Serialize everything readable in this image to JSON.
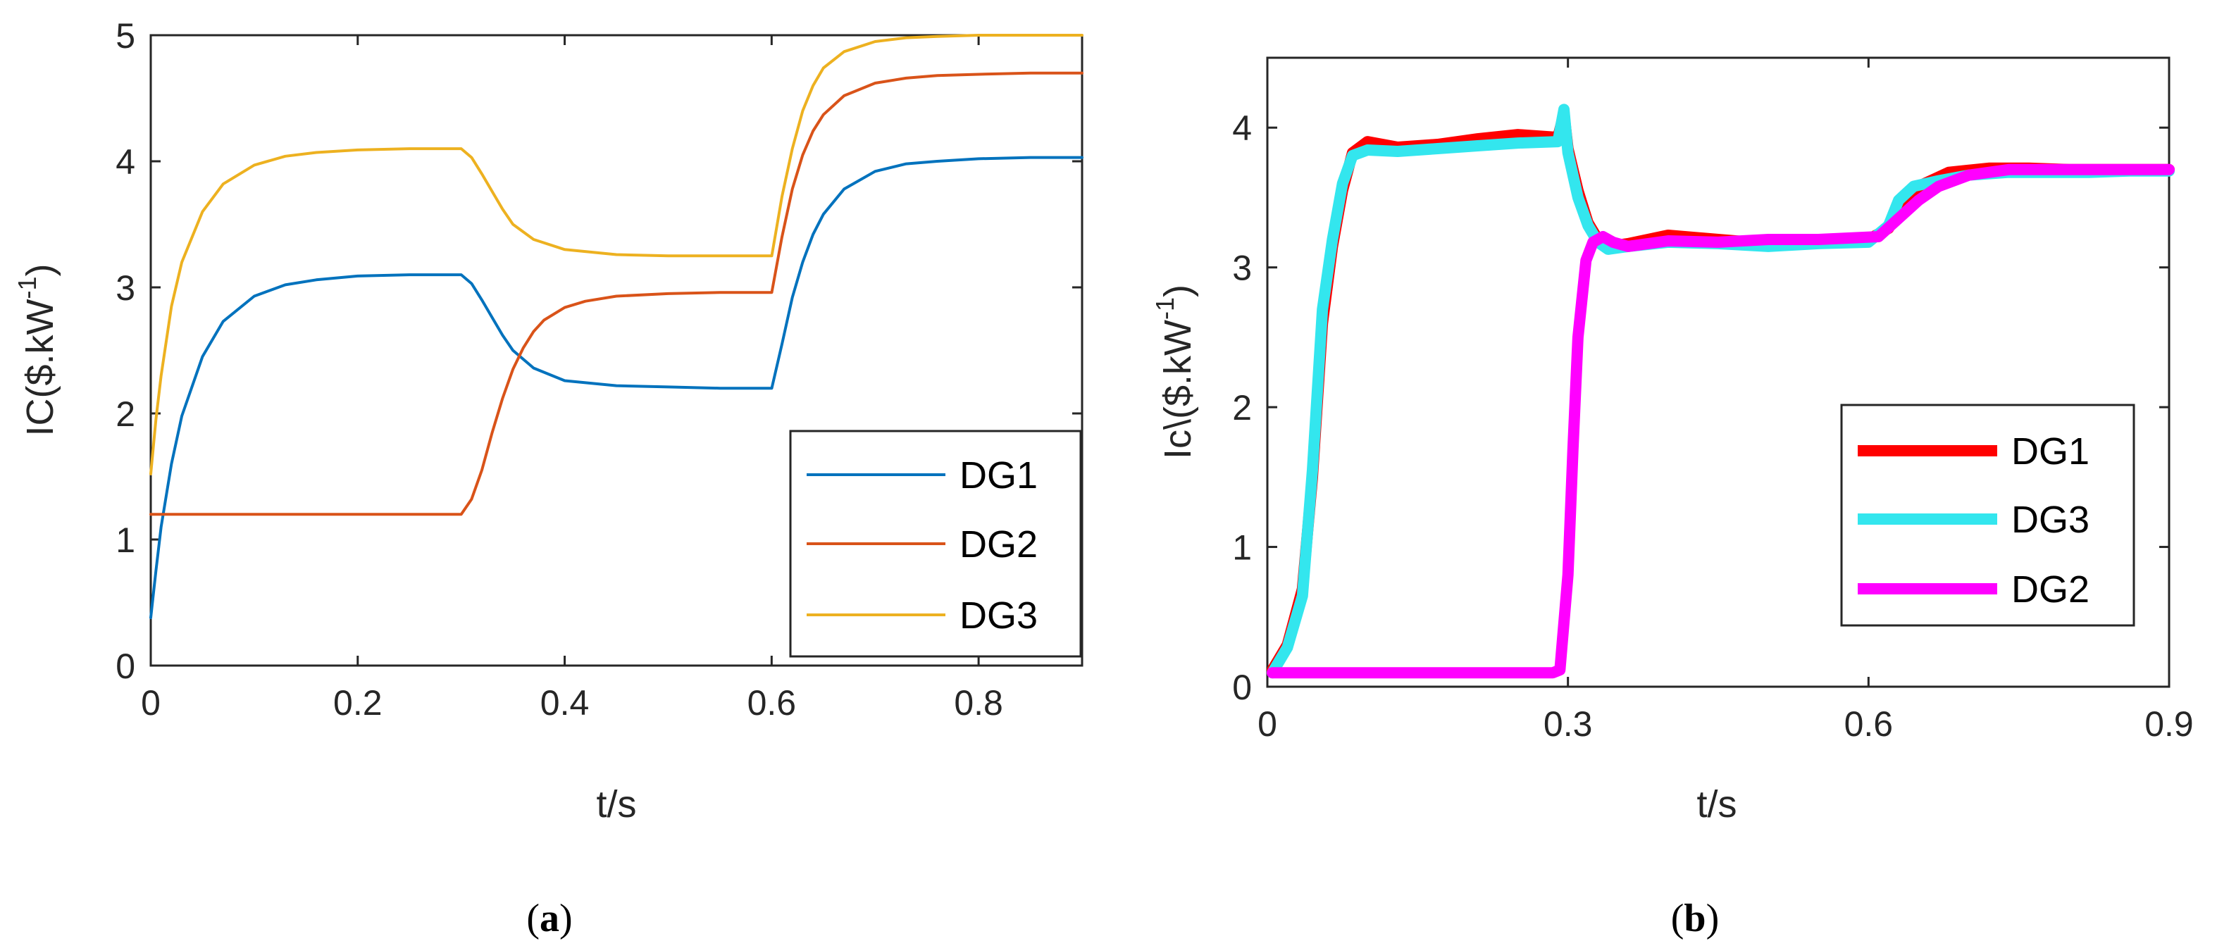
{
  "chart_data": [
    {
      "id": "a",
      "type": "line",
      "caption_letter": "a",
      "xlabel": "t/s",
      "ylabel": "IC($.kW",
      "ylabel_exp": "-1",
      "ylabel_close": ")",
      "xlim": [
        0,
        0.9
      ],
      "ylim": [
        0,
        5
      ],
      "xticks": [
        0,
        0.2,
        0.4,
        0.6,
        0.8
      ],
      "xtick_labels": [
        "0",
        "0.2",
        "0.4",
        "0.6",
        "0.8"
      ],
      "yticks": [
        0,
        1,
        2,
        3,
        4,
        5
      ],
      "ytick_labels": [
        "0",
        "1",
        "2",
        "3",
        "4",
        "5"
      ],
      "grid": false,
      "legend_position": "bottom-right",
      "series": [
        {
          "name": "DG1",
          "color": "#0072bd",
          "width": "thin",
          "x": [
            0,
            0.005,
            0.01,
            0.02,
            0.03,
            0.05,
            0.07,
            0.1,
            0.13,
            0.16,
            0.2,
            0.25,
            0.3,
            0.31,
            0.32,
            0.33,
            0.34,
            0.35,
            0.37,
            0.4,
            0.45,
            0.5,
            0.55,
            0.6,
            0.6001,
            0.61,
            0.62,
            0.63,
            0.64,
            0.65,
            0.67,
            0.7,
            0.73,
            0.76,
            0.8,
            0.85,
            0.9
          ],
          "y": [
            0.38,
            0.75,
            1.1,
            1.6,
            1.98,
            2.45,
            2.73,
            2.93,
            3.02,
            3.06,
            3.09,
            3.1,
            3.1,
            3.03,
            2.9,
            2.76,
            2.62,
            2.5,
            2.36,
            2.26,
            2.22,
            2.21,
            2.2,
            2.2,
            2.2,
            2.55,
            2.92,
            3.2,
            3.42,
            3.58,
            3.78,
            3.92,
            3.98,
            4.0,
            4.02,
            4.03,
            4.03
          ]
        },
        {
          "name": "DG2",
          "color": "#d95319",
          "width": "thin",
          "x": [
            0,
            0.1,
            0.2,
            0.3,
            0.31,
            0.32,
            0.33,
            0.34,
            0.35,
            0.36,
            0.37,
            0.38,
            0.4,
            0.42,
            0.45,
            0.5,
            0.55,
            0.6,
            0.6001,
            0.61,
            0.62,
            0.63,
            0.64,
            0.65,
            0.67,
            0.7,
            0.73,
            0.76,
            0.8,
            0.85,
            0.9
          ],
          "y": [
            1.2,
            1.2,
            1.2,
            1.2,
            1.32,
            1.55,
            1.85,
            2.12,
            2.35,
            2.52,
            2.65,
            2.74,
            2.84,
            2.89,
            2.93,
            2.95,
            2.96,
            2.96,
            2.96,
            3.4,
            3.78,
            4.05,
            4.24,
            4.37,
            4.52,
            4.62,
            4.66,
            4.68,
            4.69,
            4.7,
            4.7
          ]
        },
        {
          "name": "DG3",
          "color": "#edb120",
          "width": "thin",
          "x": [
            0,
            0.005,
            0.01,
            0.02,
            0.03,
            0.05,
            0.07,
            0.1,
            0.13,
            0.16,
            0.2,
            0.25,
            0.3,
            0.31,
            0.32,
            0.33,
            0.34,
            0.35,
            0.37,
            0.4,
            0.45,
            0.5,
            0.55,
            0.6,
            0.6001,
            0.61,
            0.62,
            0.63,
            0.64,
            0.65,
            0.67,
            0.7,
            0.73,
            0.76,
            0.8,
            0.85,
            0.9
          ],
          "y": [
            1.52,
            1.95,
            2.3,
            2.85,
            3.2,
            3.6,
            3.82,
            3.97,
            4.04,
            4.07,
            4.09,
            4.1,
            4.1,
            4.03,
            3.9,
            3.76,
            3.62,
            3.5,
            3.38,
            3.3,
            3.26,
            3.25,
            3.25,
            3.25,
            3.25,
            3.72,
            4.1,
            4.4,
            4.6,
            4.74,
            4.87,
            4.95,
            4.98,
            4.99,
            5.0,
            5.0,
            5.0
          ]
        }
      ]
    },
    {
      "id": "b",
      "type": "line",
      "caption_letter": "b",
      "xlabel": "t/s",
      "ylabel": "Ic\\($.kW",
      "ylabel_exp": "-1",
      "ylabel_close": ")",
      "xlim": [
        0,
        0.9
      ],
      "ylim": [
        0,
        4.5
      ],
      "xticks": [
        0,
        0.3,
        0.6,
        0.9
      ],
      "xtick_labels": [
        "0",
        "0.3",
        "0.6",
        "0.9"
      ],
      "yticks": [
        0,
        1,
        2,
        3,
        4
      ],
      "ytick_labels": [
        "0",
        "1",
        "2",
        "3",
        "4"
      ],
      "grid": false,
      "legend_position": "bottom-right",
      "series": [
        {
          "name": "DG1",
          "color": "#ff0000",
          "width": "thick",
          "x": [
            0.005,
            0.02,
            0.035,
            0.045,
            0.055,
            0.065,
            0.075,
            0.085,
            0.1,
            0.13,
            0.17,
            0.21,
            0.25,
            0.29,
            0.296,
            0.3,
            0.31,
            0.32,
            0.33,
            0.34,
            0.36,
            0.4,
            0.45,
            0.5,
            0.55,
            0.6,
            0.62,
            0.635,
            0.65,
            0.68,
            0.72,
            0.76,
            0.8,
            0.85,
            0.9
          ],
          "y": [
            0.12,
            0.3,
            0.7,
            1.5,
            2.6,
            3.15,
            3.55,
            3.82,
            3.9,
            3.86,
            3.88,
            3.92,
            3.95,
            3.93,
            4.1,
            3.85,
            3.55,
            3.32,
            3.2,
            3.15,
            3.17,
            3.23,
            3.2,
            3.17,
            3.18,
            3.2,
            3.28,
            3.45,
            3.58,
            3.68,
            3.71,
            3.71,
            3.7,
            3.7,
            3.7
          ]
        },
        {
          "name": "DG3",
          "color": "#33e6ee",
          "width": "thick",
          "x": [
            0.005,
            0.02,
            0.035,
            0.045,
            0.055,
            0.065,
            0.075,
            0.085,
            0.1,
            0.13,
            0.17,
            0.21,
            0.25,
            0.29,
            0.296,
            0.3,
            0.31,
            0.32,
            0.33,
            0.34,
            0.36,
            0.4,
            0.45,
            0.5,
            0.55,
            0.6,
            0.62,
            0.63,
            0.645,
            0.67,
            0.7,
            0.74,
            0.78,
            0.82,
            0.86,
            0.9
          ],
          "y": [
            0.1,
            0.28,
            0.65,
            1.55,
            2.7,
            3.2,
            3.6,
            3.8,
            3.84,
            3.83,
            3.85,
            3.87,
            3.89,
            3.9,
            4.13,
            3.82,
            3.5,
            3.3,
            3.18,
            3.13,
            3.15,
            3.18,
            3.17,
            3.15,
            3.17,
            3.18,
            3.3,
            3.48,
            3.58,
            3.62,
            3.66,
            3.68,
            3.68,
            3.68,
            3.69,
            3.69
          ]
        },
        {
          "name": "DG2",
          "color": "#ff00ff",
          "width": "thick",
          "x": [
            0.005,
            0.1,
            0.2,
            0.285,
            0.292,
            0.3,
            0.305,
            0.31,
            0.318,
            0.325,
            0.335,
            0.345,
            0.36,
            0.4,
            0.45,
            0.5,
            0.55,
            0.61,
            0.63,
            0.65,
            0.67,
            0.7,
            0.74,
            0.8,
            0.85,
            0.9
          ],
          "y": [
            0.1,
            0.1,
            0.1,
            0.1,
            0.12,
            0.8,
            1.7,
            2.5,
            3.05,
            3.18,
            3.22,
            3.18,
            3.15,
            3.19,
            3.18,
            3.2,
            3.2,
            3.22,
            3.35,
            3.48,
            3.58,
            3.66,
            3.7,
            3.7,
            3.7,
            3.7
          ]
        }
      ]
    }
  ]
}
